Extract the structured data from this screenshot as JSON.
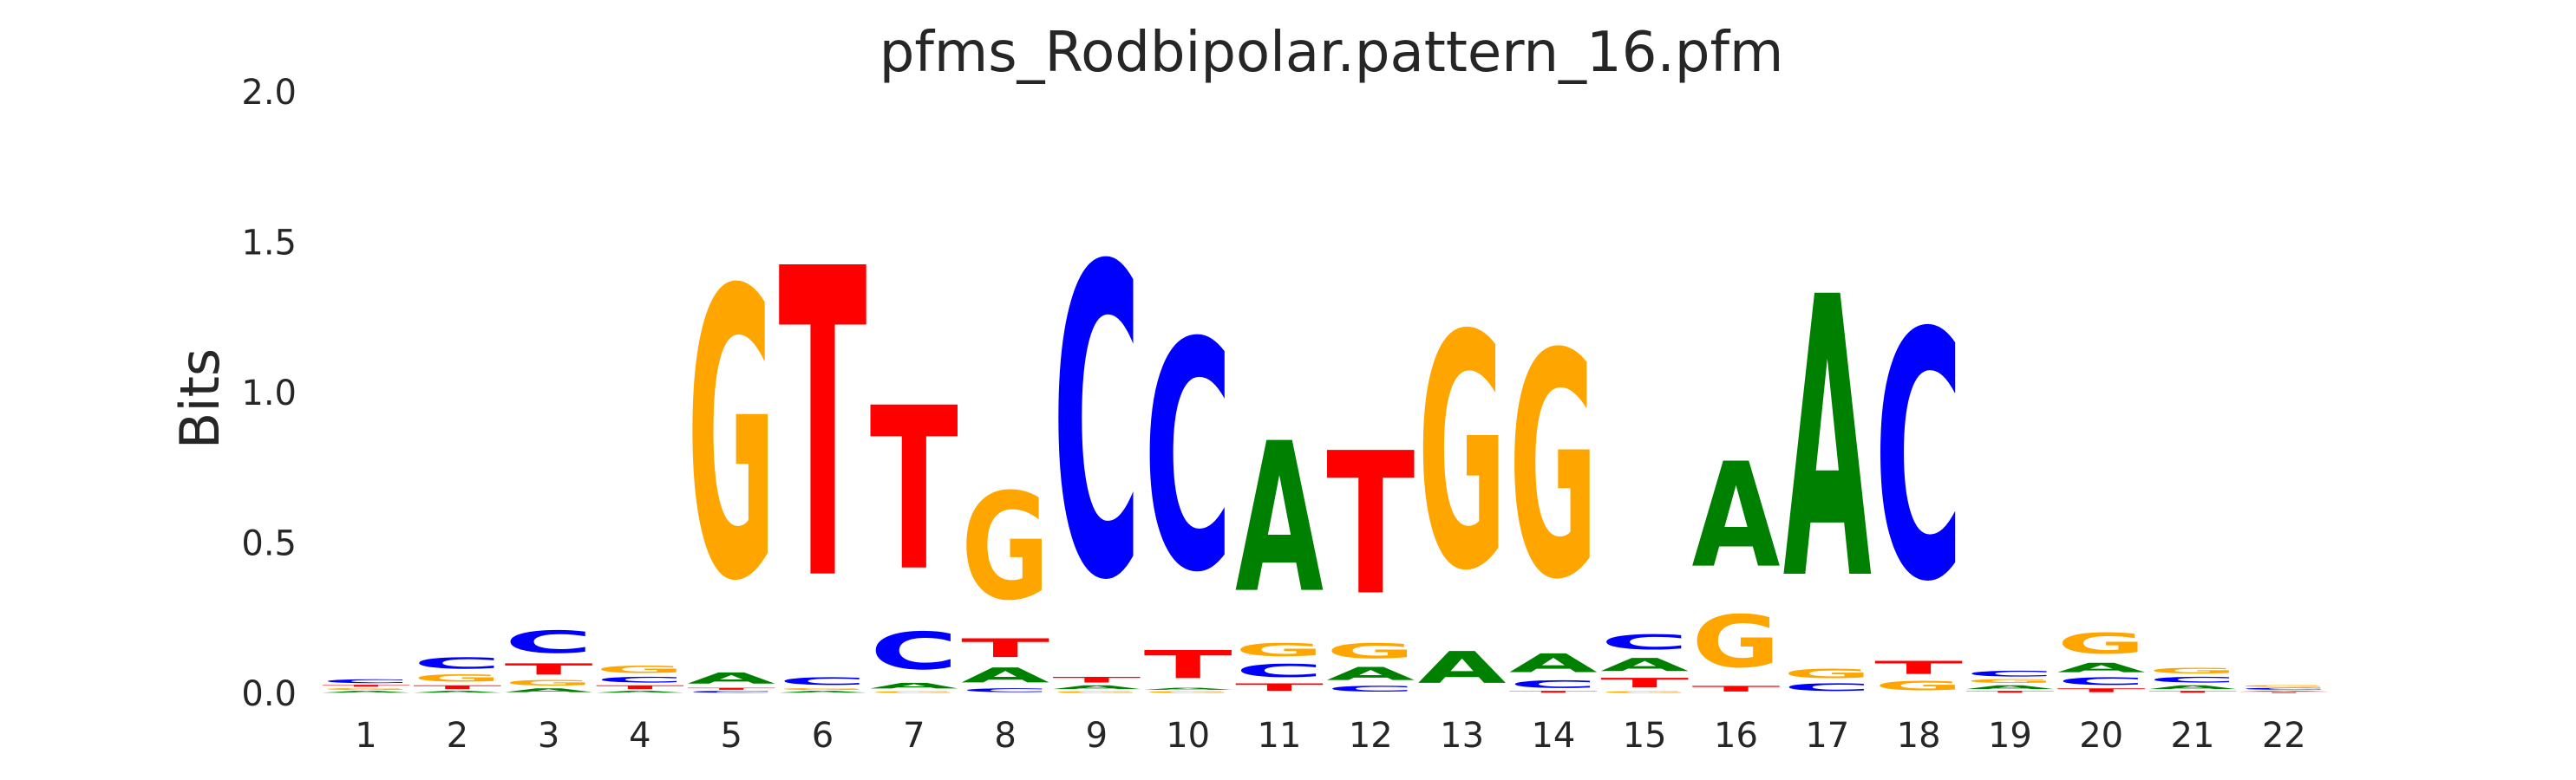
{
  "chart_data": {
    "type": "sequence-logo",
    "title": "pfms_Rodbipolar.pattern_16.pfm",
    "ylabel": "Bits",
    "xlabel": "",
    "ylim": [
      0,
      2
    ],
    "yticks": [
      "0.0",
      "0.5",
      "1.0",
      "1.5",
      "2.0"
    ],
    "positions": [
      "1",
      "2",
      "3",
      "4",
      "5",
      "6",
      "7",
      "8",
      "9",
      "10",
      "11",
      "12",
      "13",
      "14",
      "15",
      "16",
      "17",
      "18",
      "19",
      "20",
      "21",
      "22"
    ],
    "colors": {
      "A": "#008000",
      "C": "#0000ff",
      "G": "#ffa500",
      "T": "#ff0000"
    },
    "grid": false,
    "legend": "none",
    "stacks": [
      [
        {
          "base": "A",
          "bits": 0.01
        },
        {
          "base": "G",
          "bits": 0.01
        },
        {
          "base": "T",
          "bits": 0.01
        },
        {
          "base": "C",
          "bits": 0.02
        }
      ],
      [
        {
          "base": "A",
          "bits": 0.01
        },
        {
          "base": "T",
          "bits": 0.02
        },
        {
          "base": "G",
          "bits": 0.04
        },
        {
          "base": "C",
          "bits": 0.06
        }
      ],
      [
        {
          "base": "A",
          "bits": 0.02
        },
        {
          "base": "G",
          "bits": 0.03
        },
        {
          "base": "T",
          "bits": 0.06
        },
        {
          "base": "C",
          "bits": 0.12
        }
      ],
      [
        {
          "base": "A",
          "bits": 0.01
        },
        {
          "base": "T",
          "bits": 0.02
        },
        {
          "base": "C",
          "bits": 0.03
        },
        {
          "base": "G",
          "bits": 0.04
        }
      ],
      [
        {
          "base": "C",
          "bits": 0.01
        },
        {
          "base": "T",
          "bits": 0.01
        },
        {
          "base": "A",
          "bits": 0.06
        },
        {
          "base": "G",
          "bits": 1.54
        }
      ],
      [
        {
          "base": "A",
          "bits": 0.01
        },
        {
          "base": "G",
          "bits": 0.01
        },
        {
          "base": "C",
          "bits": 0.04
        },
        {
          "base": "T",
          "bits": 1.65
        }
      ],
      [
        {
          "base": "G",
          "bits": 0.01
        },
        {
          "base": "A",
          "bits": 0.03
        },
        {
          "base": "C",
          "bits": 0.2
        },
        {
          "base": "T",
          "bits": 0.87
        }
      ],
      [
        {
          "base": "C",
          "bits": 0.02
        },
        {
          "base": "A",
          "bits": 0.08
        },
        {
          "base": "T",
          "bits": 0.1
        },
        {
          "base": "G",
          "bits": 0.57
        }
      ],
      [
        {
          "base": "G",
          "bits": 0.01
        },
        {
          "base": "A",
          "bits": 0.02
        },
        {
          "base": "T",
          "bits": 0.03
        },
        {
          "base": "C",
          "bits": 1.66
        }
      ],
      [
        {
          "base": "G",
          "bits": 0.01
        },
        {
          "base": "A",
          "bits": 0.01
        },
        {
          "base": "T",
          "bits": 0.15
        },
        {
          "base": "C",
          "bits": 1.22
        }
      ],
      [
        {
          "base": "T",
          "bits": 0.04
        },
        {
          "base": "C",
          "bits": 0.07
        },
        {
          "base": "G",
          "bits": 0.07
        },
        {
          "base": "A",
          "bits": 0.8
        }
      ],
      [
        {
          "base": "C",
          "bits": 0.03
        },
        {
          "base": "A",
          "bits": 0.07
        },
        {
          "base": "G",
          "bits": 0.08
        },
        {
          "base": "T",
          "bits": 0.76
        }
      ],
      [
        {
          "base": "A",
          "bits": 0.17
        },
        {
          "base": "G",
          "bits": 1.25
        }
      ],
      [
        {
          "base": "T",
          "bits": 0.01
        },
        {
          "base": "C",
          "bits": 0.04
        },
        {
          "base": "A",
          "bits": 0.1
        },
        {
          "base": "G",
          "bits": 1.2
        }
      ],
      [
        {
          "base": "G",
          "bits": 0.01
        },
        {
          "base": "T",
          "bits": 0.05
        },
        {
          "base": "A",
          "bits": 0.07
        },
        {
          "base": "C",
          "bits": 0.08
        }
      ],
      [
        {
          "base": "T",
          "bits": 0.03
        },
        {
          "base": "G",
          "bits": 0.28
        },
        {
          "base": "A",
          "bits": 0.56
        }
      ],
      [
        {
          "base": "C",
          "bits": 0.04
        },
        {
          "base": "G",
          "bits": 0.05
        },
        {
          "base": "A",
          "bits": 1.5
        }
      ],
      [
        {
          "base": "G",
          "bits": 0.05
        },
        {
          "base": "T",
          "bits": 0.07
        },
        {
          "base": "C",
          "bits": 1.32
        }
      ],
      [
        {
          "base": "T",
          "bits": 0.01
        },
        {
          "base": "A",
          "bits": 0.02
        },
        {
          "base": "G",
          "bits": 0.02
        },
        {
          "base": "C",
          "bits": 0.03
        }
      ],
      [
        {
          "base": "T",
          "bits": 0.02
        },
        {
          "base": "C",
          "bits": 0.04
        },
        {
          "base": "A",
          "bits": 0.05
        },
        {
          "base": "G",
          "bits": 0.11
        }
      ],
      [
        {
          "base": "T",
          "bits": 0.01
        },
        {
          "base": "A",
          "bits": 0.02
        },
        {
          "base": "C",
          "bits": 0.03
        },
        {
          "base": "G",
          "bits": 0.03
        }
      ],
      [
        {
          "base": "T",
          "bits": 0.005
        },
        {
          "base": "A",
          "bits": 0.005
        },
        {
          "base": "C",
          "bits": 0.01
        },
        {
          "base": "G",
          "bits": 0.01
        }
      ]
    ]
  }
}
